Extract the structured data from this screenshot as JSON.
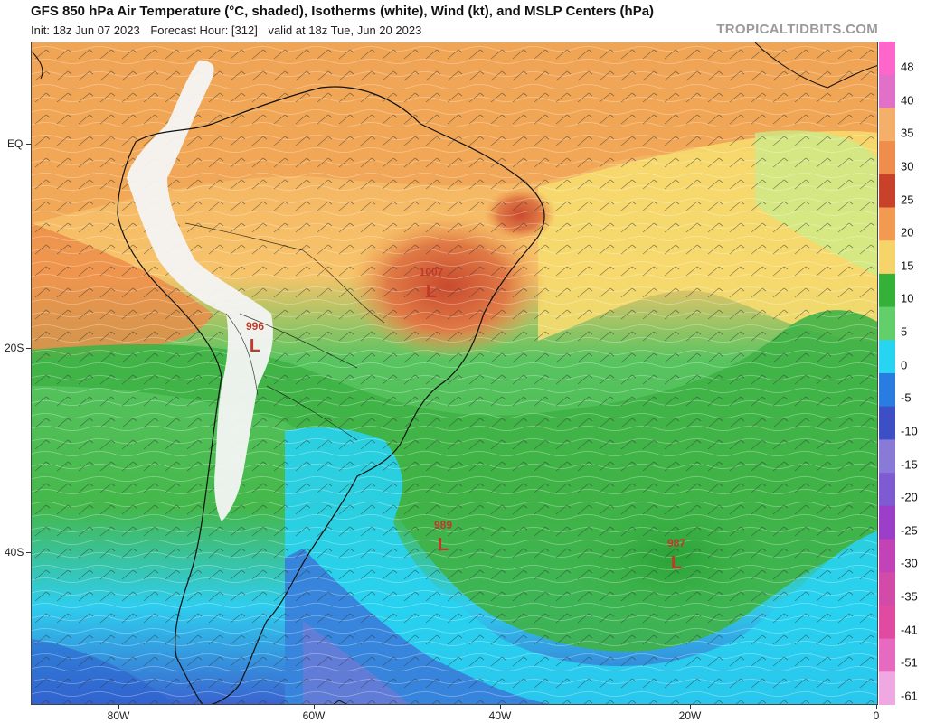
{
  "header": {
    "title": "GFS 850 hPa Air Temperature (°C, shaded), Isotherms (white), Wind (kt), and MSLP Centers (hPa)",
    "init": "Init: 18z Jun 07 2023",
    "forecast_hour": "Forecast Hour: [312]",
    "valid": "valid at 18z Tue, Jun 20 2023",
    "watermark": "TROPICALTIDBITS.COM"
  },
  "axes": {
    "lat_labels": [
      "EQ",
      "20S",
      "40S"
    ],
    "lon_labels": [
      "80W",
      "60W",
      "40W",
      "20W",
      "0"
    ]
  },
  "colorbar": {
    "labels": [
      "48",
      "40",
      "35",
      "30",
      "25",
      "20",
      "15",
      "10",
      "5",
      "0",
      "-5",
      "-10",
      "-15",
      "-20",
      "-25",
      "-30",
      "-35",
      "-41",
      "-51",
      "-61"
    ],
    "colors": [
      "#ff66cc",
      "#e070c8",
      "#f4b06a",
      "#ef8d4c",
      "#c8412a",
      "#f39a52",
      "#f7d46a",
      "#35b13a",
      "#62cf6b",
      "#27d4f2",
      "#2a7de0",
      "#3c4fc4",
      "#8a7ad8",
      "#7e5bd0",
      "#9b3ec8",
      "#c243b8",
      "#d24ba8",
      "#e04aa0",
      "#e66bc0",
      "#f0a8e2"
    ]
  },
  "pressure_centers": [
    {
      "value": "1007",
      "symbol": "L"
    },
    {
      "value": "996",
      "symbol": "L"
    },
    {
      "value": "989",
      "symbol": "L"
    },
    {
      "value": "987",
      "symbol": "L"
    }
  ],
  "colors": {
    "land_outline": "#111111",
    "low_center": "#c0392b",
    "high_terrain": "#ffffff"
  }
}
